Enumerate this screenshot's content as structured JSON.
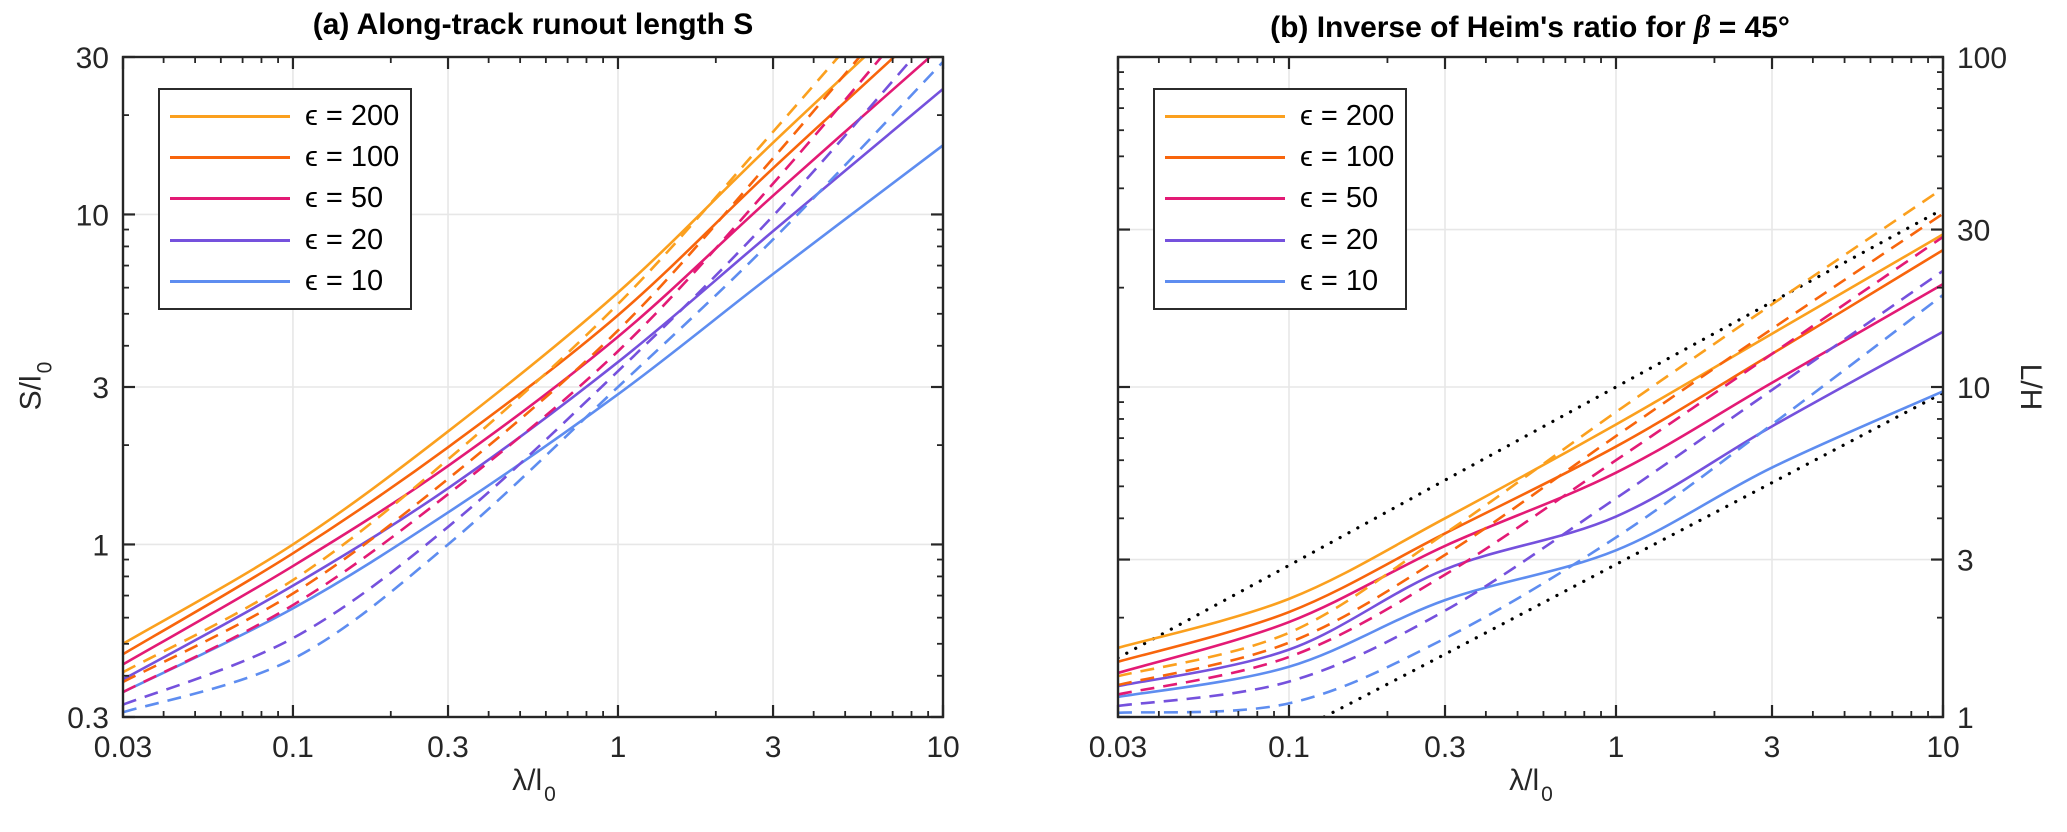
{
  "figure": {
    "background": "#ffffff",
    "axis_color": "#262626",
    "grid_color": "#e7e7e7",
    "series_colors": {
      "e200": "#FBA01E",
      "e100": "#F8650C",
      "e50": "#E31A75",
      "e20": "#7551DD",
      "e10": "#5E8DF0"
    },
    "dotted_color": "#000000",
    "legend_entries": [
      {
        "key": "e200",
        "label": "ϵ = 200"
      },
      {
        "key": "e100",
        "label": "ϵ = 100"
      },
      {
        "key": "e50",
        "label": "ϵ = 50"
      },
      {
        "key": "e20",
        "label": "ϵ = 20"
      },
      {
        "key": "e10",
        "label": "ϵ = 10"
      }
    ]
  },
  "panel_a": {
    "title": "(a) Along-track runout length S",
    "xlabel_main": "λ/l",
    "xlabel_sub": "0",
    "ylabel_main": "S/l",
    "ylabel_sub": "0"
  },
  "panel_b": {
    "title_prefix": "(b) Inverse of Heim's ratio for ",
    "title_beta": "β",
    "title_suffix": " = 45°",
    "xlabel_main": "λ/l",
    "xlabel_sub": "0",
    "ylabel": "L/H"
  },
  "chart_data": [
    {
      "type": "line",
      "title": "(a) Along-track runout length S",
      "xlabel": "λ/l_0",
      "ylabel": "S/l_0",
      "xscale": "log",
      "yscale": "log",
      "xlim": [
        0.03,
        10
      ],
      "ylim": [
        0.3,
        30
      ],
      "xticks": [
        0.03,
        0.1,
        0.3,
        1,
        3,
        10
      ],
      "xticklabels": [
        "0.03",
        "0.1",
        "0.3",
        "1",
        "3",
        "10"
      ],
      "yticks": [
        0.3,
        1,
        3,
        10,
        30
      ],
      "yticklabels": [
        "0.3",
        "1",
        "3",
        "10",
        "30"
      ],
      "ylabel_side": "left",
      "grid": true,
      "legend_position": "top-left",
      "x": [
        0.03,
        0.1,
        0.3,
        1,
        3,
        10
      ],
      "series": [
        {
          "name": "epsilon-200-solid",
          "legend": "ϵ = 200",
          "color": "e200",
          "style": "solid",
          "y": [
            0.5,
            1.0,
            2.2,
            5.8,
            16.5,
            50
          ]
        },
        {
          "name": "epsilon-100-solid",
          "legend": "ϵ = 100",
          "color": "e100",
          "style": "solid",
          "y": [
            0.465,
            0.94,
            1.97,
            4.95,
            13.8,
            41
          ]
        },
        {
          "name": "epsilon-50-solid",
          "legend": "ϵ = 50",
          "color": "e50",
          "style": "solid",
          "y": [
            0.433,
            0.86,
            1.73,
            4.26,
            11.4,
            32.5
          ]
        },
        {
          "name": "epsilon-20-solid",
          "legend": "ϵ = 20",
          "color": "e20",
          "style": "solid",
          "y": [
            0.39,
            0.75,
            1.48,
            3.57,
            8.9,
            24
          ]
        },
        {
          "name": "epsilon-10-solid",
          "legend": "ϵ = 10",
          "color": "e10",
          "style": "solid",
          "y": [
            0.357,
            0.64,
            1.25,
            2.85,
            6.6,
            16.2
          ]
        },
        {
          "name": "epsilon-200-dashed",
          "legend": null,
          "color": "e200",
          "style": "dashed",
          "y": [
            0.41,
            0.78,
            1.81,
            5.35,
            17.8,
            70
          ]
        },
        {
          "name": "epsilon-100-dashed",
          "legend": null,
          "color": "e100",
          "style": "dashed",
          "y": [
            0.383,
            0.71,
            1.58,
            4.45,
            14.8,
            60
          ]
        },
        {
          "name": "epsilon-50-dashed",
          "legend": null,
          "color": "e50",
          "style": "dashed",
          "y": [
            0.357,
            0.655,
            1.42,
            3.85,
            12.4,
            50
          ]
        },
        {
          "name": "epsilon-20-dashed",
          "legend": null,
          "color": "e20",
          "style": "dashed",
          "y": [
            0.327,
            0.52,
            1.13,
            3.35,
            9.9,
            38
          ]
        },
        {
          "name": "epsilon-10-dashed",
          "legend": null,
          "color": "e10",
          "style": "dashed",
          "y": [
            0.31,
            0.45,
            1.0,
            3.0,
            8.4,
            29
          ]
        }
      ]
    },
    {
      "type": "line",
      "title": "(b) Inverse of Heim's ratio for β = 45°",
      "xlabel": "λ/l_0",
      "ylabel": "L/H",
      "xscale": "log",
      "yscale": "log",
      "xlim": [
        0.03,
        10
      ],
      "ylim": [
        1,
        100
      ],
      "xticks": [
        0.03,
        0.1,
        0.3,
        1,
        3,
        10
      ],
      "xticklabels": [
        "0.03",
        "0.1",
        "0.3",
        "1",
        "3",
        "10"
      ],
      "yticks": [
        1,
        3,
        10,
        30,
        100
      ],
      "yticklabels": [
        "1",
        "3",
        "10",
        "30",
        "100"
      ],
      "ylabel_side": "right",
      "grid": true,
      "legend_position": "top-left",
      "x": [
        0.03,
        0.1,
        0.3,
        1,
        3,
        10
      ],
      "series": [
        {
          "name": "epsilon-200-solid",
          "legend": "ϵ = 200",
          "color": "e200",
          "style": "solid",
          "y": [
            1.62,
            2.28,
            4.0,
            7.7,
            14.5,
            29
          ]
        },
        {
          "name": "epsilon-100-solid",
          "legend": "ϵ = 100",
          "color": "e100",
          "style": "solid",
          "y": [
            1.47,
            2.08,
            3.6,
            6.6,
            12.6,
            26
          ]
        },
        {
          "name": "epsilon-50-solid",
          "legend": "ϵ = 50",
          "color": "e50",
          "style": "solid",
          "y": [
            1.36,
            1.94,
            3.3,
            5.5,
            10.3,
            20.5
          ]
        },
        {
          "name": "epsilon-20-solid",
          "legend": "ϵ = 20",
          "color": "e20",
          "style": "solid",
          "y": [
            1.24,
            1.6,
            2.8,
            4.05,
            7.6,
            14.7
          ]
        },
        {
          "name": "epsilon-10-solid",
          "legend": "ϵ = 10",
          "color": "e10",
          "style": "solid",
          "y": [
            1.15,
            1.42,
            2.26,
            3.2,
            5.7,
            9.7
          ]
        },
        {
          "name": "epsilon-200-dashed",
          "legend": null,
          "color": "e200",
          "style": "dashed",
          "y": [
            1.33,
            1.8,
            3.6,
            8.4,
            17.8,
            40
          ]
        },
        {
          "name": "epsilon-100-dashed",
          "legend": null,
          "color": "e100",
          "style": "dashed",
          "y": [
            1.25,
            1.68,
            3.1,
            7.1,
            15.0,
            33.5
          ]
        },
        {
          "name": "epsilon-50-dashed",
          "legend": null,
          "color": "e50",
          "style": "dashed",
          "y": [
            1.17,
            1.52,
            2.7,
            6.0,
            12.6,
            28.5
          ]
        },
        {
          "name": "epsilon-20-dashed",
          "legend": null,
          "color": "e20",
          "style": "dashed",
          "y": [
            1.08,
            1.28,
            2.1,
            4.6,
            9.8,
            22.5
          ]
        },
        {
          "name": "epsilon-10-dashed",
          "legend": null,
          "color": "e10",
          "style": "dashed",
          "y": [
            1.03,
            1.1,
            1.73,
            3.5,
            7.7,
            19
          ]
        }
      ],
      "reference_lines": [
        {
          "name": "dotted-upper-reference",
          "style": "dotted",
          "x": [
            0.03,
            0.1,
            0.3,
            1,
            3,
            10
          ],
          "y": [
            1.51,
            2.88,
            5.22,
            10.0,
            18.1,
            34.6
          ]
        },
        {
          "name": "dotted-lower-reference",
          "style": "dotted",
          "x": [
            0.128,
            0.3,
            1,
            3,
            10
          ],
          "y": [
            1.0,
            1.55,
            2.9,
            5.13,
            9.6
          ]
        }
      ]
    }
  ]
}
